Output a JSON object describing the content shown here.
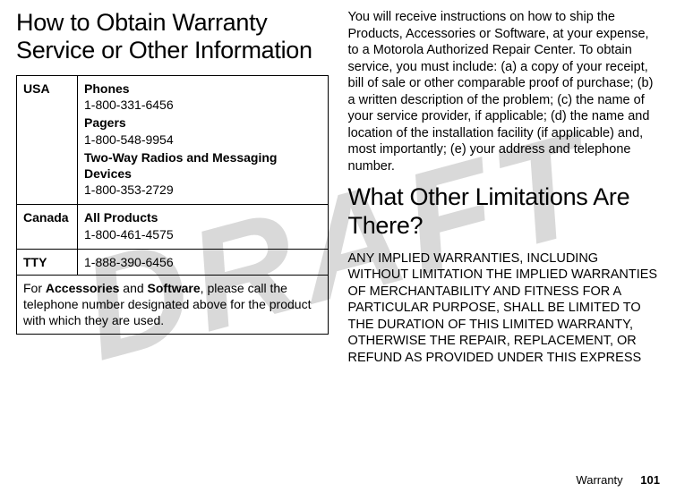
{
  "watermark": "DRAFT",
  "left": {
    "heading": "How to Obtain Warranty Service or Other Information",
    "rows": {
      "usa": {
        "label": "USA",
        "phones_h": "Phones",
        "phones_n": "1-800-331-6456",
        "pagers_h": "Pagers",
        "pagers_n": "1-800-548-9954",
        "twoway_h": "Two-Way Radios and Messaging Devices",
        "twoway_n": "1-800-353-2729"
      },
      "canada": {
        "label": "Canada",
        "all_h": "All Products",
        "all_n": "1-800-461-4575"
      },
      "tty": {
        "label": "TTY",
        "num": "1-888-390-6456"
      },
      "foot": {
        "p1": "For ",
        "b1": "Accessories",
        "p2": " and ",
        "b2": "Software",
        "p3": ", please call the telephone number designated above for the product with which they are used."
      }
    }
  },
  "right": {
    "para1": "You will receive instructions on how to ship the Products, Accessories or Software, at your expense, to a Motorola Authorized Repair Center. To obtain service, you must include: (a) a copy of your receipt, bill of sale or other comparable proof of purchase; (b) a written description of the problem; (c) the name of your service provider, if applicable; (d) the name and location of the installation facility (if applicable) and, most importantly; (e) your address and telephone number.",
    "heading2": "What Other Limitations Are There?",
    "para2": "ANY IMPLIED WARRANTIES, INCLUDING WITHOUT LIMITATION THE IMPLIED WARRANTIES OF MERCHANTABILITY AND FITNESS FOR A PARTICULAR PURPOSE, SHALL BE LIMITED TO THE DURATION OF THIS LIMITED WARRANTY, OTHERWISE THE REPAIR, REPLACEMENT, OR REFUND AS PROVIDED UNDER THIS EXPRESS"
  },
  "footer": {
    "section": "Warranty",
    "page": "101"
  }
}
